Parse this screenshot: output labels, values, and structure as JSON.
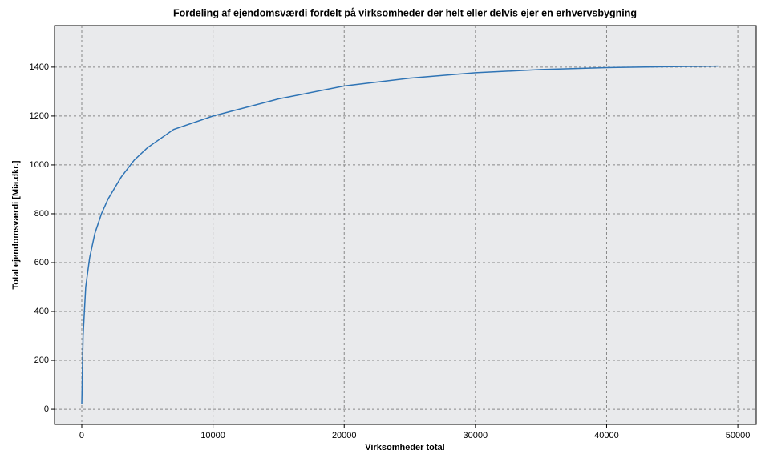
{
  "chart_data": {
    "type": "line",
    "title": "Fordeling af ejendomsværdi fordelt på virksomheder der helt eller delvis ejer en erhvervsbygning",
    "x_label": "Virksomheder total",
    "y_label": "Total ejendomsværdi [Mia.dkr.]",
    "x": [
      0,
      100,
      300,
      600,
      1000,
      1500,
      2000,
      3000,
      4000,
      5000,
      7000,
      10000,
      15000,
      20000,
      25000,
      30000,
      35000,
      40000,
      45000,
      48500
    ],
    "values": [
      20,
      300,
      500,
      620,
      720,
      800,
      860,
      950,
      1020,
      1070,
      1145,
      1200,
      1270,
      1323,
      1355,
      1377,
      1390,
      1398,
      1402,
      1404
    ],
    "color": "#2f74b5",
    "xlim": [
      -2078,
      51400
    ],
    "ylim": [
      -62,
      1570
    ],
    "xticks": [
      0,
      10000,
      20000,
      30000,
      40000,
      50000
    ],
    "yticks": [
      0,
      200,
      400,
      600,
      800,
      1000,
      1200,
      1400
    ],
    "grid": true
  }
}
